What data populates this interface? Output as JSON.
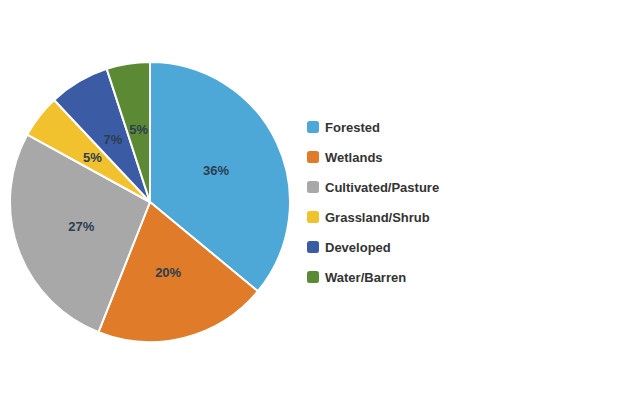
{
  "chart_data": {
    "type": "pie",
    "categories": [
      "Forested",
      "Wetlands",
      "Cultivated/Pasture",
      "Grassland/Shrub",
      "Developed",
      "Water/Barren"
    ],
    "values": [
      36,
      20,
      27,
      5,
      7,
      5
    ],
    "value_labels": [
      "36%",
      "20%",
      "27%",
      "5%",
      "7%",
      "5%"
    ],
    "colors": [
      "#4DA8D8",
      "#E07B2A",
      "#A8A8A8",
      "#F2C12E",
      "#3B5BA5",
      "#5C8A34"
    ],
    "data_labels": true,
    "legend": "right"
  }
}
